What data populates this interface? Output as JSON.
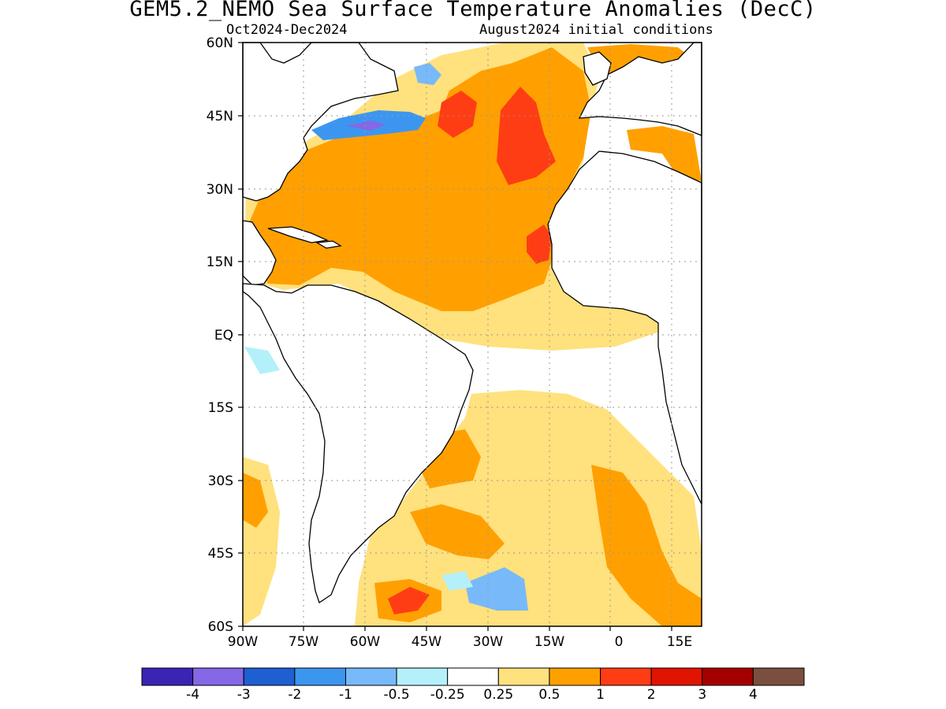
{
  "title": "GEM5.2_NEMO Sea Surface Temperature Anomalies (DecC)",
  "subtitle_left": "Oct2024-Dec2024",
  "subtitle_right": "August2024 initial conditions",
  "map": {
    "lat_labels": [
      "60N",
      "45N",
      "30N",
      "15N",
      "EQ",
      "15S",
      "30S",
      "45S",
      "60S"
    ],
    "lon_labels": [
      "90W",
      "75W",
      "60W",
      "45W",
      "30W",
      "15W",
      "0",
      "15E"
    ],
    "lat_range": [
      -60,
      60
    ],
    "lon_range": [
      -90,
      15
    ],
    "grid": "dotted"
  },
  "colorbar": {
    "colors": [
      "#3a24b4",
      "#8468e6",
      "#1e5fd2",
      "#3c96f0",
      "#78b9fa",
      "#b4f0fa",
      "#ffffff",
      "#ffe17d",
      "#ffa000",
      "#ff3d14",
      "#e11400",
      "#a50000",
      "#7a4f3f"
    ],
    "labels": [
      "-4",
      "-3",
      "-2",
      "-1",
      "-0.5",
      "-0.25",
      "0.25",
      "0.5",
      "1",
      "2",
      "3",
      "4"
    ]
  }
}
